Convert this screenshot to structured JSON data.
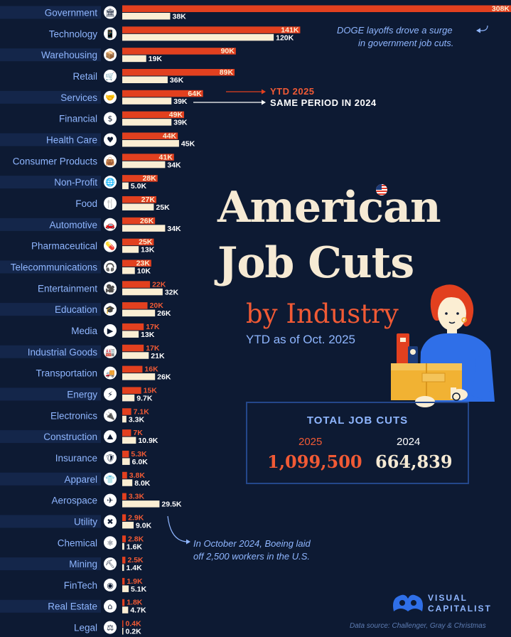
{
  "chart_data": {
    "type": "bar",
    "title": "American Job Cuts",
    "subtitle": "by Industry",
    "period_note": "YTD as of Oct. 2025",
    "categories": [
      "Government",
      "Technology",
      "Warehousing",
      "Retail",
      "Services",
      "Financial",
      "Health Care",
      "Consumer Products",
      "Non-Profit",
      "Food",
      "Automotive",
      "Pharmaceutical",
      "Telecommunications",
      "Entertainment",
      "Education",
      "Media",
      "Industrial Goods",
      "Transportation",
      "Energy",
      "Electronics",
      "Construction",
      "Insurance",
      "Apparel",
      "Aerospace",
      "Utility",
      "Chemical",
      "Mining",
      "FinTech",
      "Real Estate",
      "Legal"
    ],
    "icons": [
      "bank-icon",
      "phone-icon",
      "boxes-icon",
      "cart-icon",
      "handshake-icon",
      "dollar-icon",
      "heart-icon",
      "bag-icon",
      "globe-icon",
      "fork-knife-icon",
      "car-icon",
      "pill-icon",
      "headset-icon",
      "camera-icon",
      "graduation-cap-icon",
      "play-icon",
      "factory-icon",
      "truck-icon",
      "bolt-icon",
      "plug-icon",
      "mountain-icon",
      "shield-icon",
      "shirt-icon",
      "airplane-icon",
      "tools-icon",
      "molecule-icon",
      "pickaxe-icon",
      "fintech-icon",
      "house-icon",
      "scales-icon"
    ],
    "series": [
      {
        "name": "YTD 2025",
        "color": "#e2401f",
        "values": [
          308,
          141,
          90,
          89,
          64,
          49,
          44,
          41,
          28,
          27,
          26,
          25,
          23,
          22,
          20,
          17,
          17,
          16,
          15,
          7.1,
          7,
          5.3,
          3.8,
          3.3,
          2.9,
          2.8,
          2.5,
          1.9,
          1.8,
          0.4
        ],
        "labels": [
          "308K",
          "141K",
          "90K",
          "89K",
          "64K",
          "49K",
          "44K",
          "41K",
          "28K",
          "27K",
          "26K",
          "25K",
          "23K",
          "22K",
          "20K",
          "17K",
          "17K",
          "16K",
          "15K",
          "7.1K",
          "7K",
          "5.3K",
          "3.8K",
          "3.3K",
          "2.9K",
          "2.8K",
          "2.5K",
          "1.9K",
          "1.8K",
          "0.4K"
        ]
      },
      {
        "name": "SAME PERIOD IN 2024",
        "color": "#fbeed3",
        "values": [
          38,
          120,
          19,
          36,
          39,
          39,
          45,
          34,
          5.0,
          25,
          34,
          13,
          10,
          32,
          26,
          13,
          21,
          26,
          9.7,
          3.3,
          10.9,
          6.0,
          8.0,
          29.5,
          9.0,
          1.6,
          1.4,
          5.1,
          4.7,
          0.2
        ],
        "labels": [
          "38K",
          "120K",
          "19K",
          "36K",
          "39K",
          "39K",
          "45K",
          "34K",
          "5.0K",
          "25K",
          "34K",
          "13K",
          "10K",
          "32K",
          "26K",
          "13K",
          "21K",
          "26K",
          "9.7K",
          "3.3K",
          "10.9K",
          "6.0K",
          "8.0K",
          "29.5K",
          "9.0K",
          "1.6K",
          "1.4K",
          "5.1K",
          "4.7K",
          "0.2K"
        ]
      }
    ],
    "xlim": [
      0,
      308
    ],
    "legend_placement": "inline"
  },
  "title": {
    "line1": "American",
    "line2": "Job Cuts",
    "line3": "by Industry",
    "note": "YTD as of Oct. 2025"
  },
  "totals": {
    "heading": "TOTAL JOB CUTS",
    "year_2025": "2025",
    "value_2025": "1,099,500",
    "year_2024": "2024",
    "value_2024": "664,839"
  },
  "annotations": {
    "doge_line1": "DOGE layoffs drove a surge",
    "doge_line2": "in government job cuts.",
    "boeing_line1": "In October 2024, Boeing laid",
    "boeing_line2": "off 2,500 workers in the U.S."
  },
  "legend": {
    "label_2025": "YTD 2025",
    "label_2024": "SAME PERIOD IN 2024"
  },
  "brand": {
    "line1": "VISUAL",
    "line2": "CAPITALIST"
  },
  "source": "Data source: Challenger, Gray & Christmas",
  "colors": {
    "background": "#0d1a33",
    "bar_2025": "#e2401f",
    "bar_2024": "#fbeed3",
    "accent_blue": "#8fb6ff",
    "title_cream": "#f6ead4",
    "title_orange": "#f15a35"
  }
}
